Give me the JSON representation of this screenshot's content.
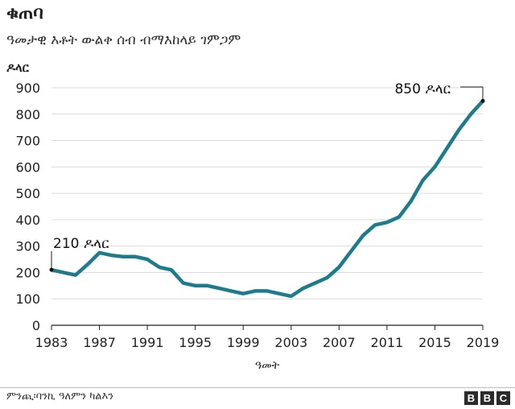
{
  "chart_data": {
    "type": "line",
    "title": "ቁጠባ",
    "subtitle": "ዓመታዊ እቶት ውልቀ ሰብ ብማእከላይ ገምጋም",
    "ylabel": "ዶላር",
    "xlabel": "ዓመት",
    "ylim": [
      0,
      900
    ],
    "yticks": [
      0,
      100,
      200,
      300,
      400,
      500,
      600,
      700,
      800,
      900
    ],
    "xlim": [
      1983,
      2019
    ],
    "xticks": [
      1983,
      1987,
      1991,
      1995,
      1999,
      2003,
      2007,
      2011,
      2015,
      2019
    ],
    "grid": true,
    "series": [
      {
        "name": "ዓመታዊ እቶት",
        "color": "#1d7c8c",
        "x": [
          1983,
          1984,
          1985,
          1986,
          1987,
          1988,
          1989,
          1990,
          1991,
          1992,
          1993,
          1994,
          1995,
          1996,
          1997,
          1998,
          1999,
          2000,
          2001,
          2002,
          2003,
          2004,
          2005,
          2006,
          2007,
          2008,
          2009,
          2010,
          2011,
          2012,
          2013,
          2014,
          2015,
          2016,
          2017,
          2018,
          2019
        ],
        "values": [
          210,
          200,
          190,
          230,
          275,
          265,
          260,
          260,
          250,
          220,
          210,
          160,
          150,
          150,
          140,
          130,
          120,
          130,
          130,
          120,
          110,
          140,
          160,
          180,
          220,
          280,
          340,
          380,
          390,
          410,
          470,
          550,
          600,
          670,
          740,
          800,
          850
        ]
      }
    ],
    "annotations": [
      {
        "x": 1983,
        "y": 210,
        "label": "210 ዶላር"
      },
      {
        "x": 2019,
        "y": 850,
        "label": "850 ዶላር"
      }
    ]
  },
  "source": "ምንጪ፡ባንኪ ዓለምን ካልእን",
  "logo": [
    "B",
    "B",
    "C"
  ],
  "colors": {
    "line": "#1d7c8c",
    "grid": "#dcdcdc",
    "axis": "#222222"
  }
}
